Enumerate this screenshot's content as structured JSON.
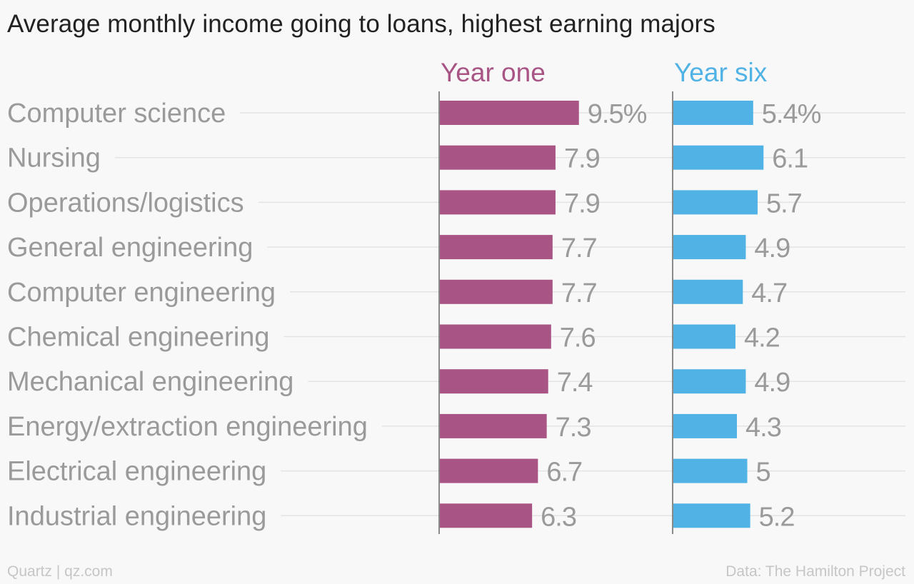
{
  "title": "Average monthly income going to loans, highest earning majors",
  "footer": {
    "source_left": "Quartz | qz.com",
    "source_right": "Data: The Hamilton Project"
  },
  "colors": {
    "year_one": "#a85585",
    "year_six": "#51b2e5",
    "label": "#9a9a9a",
    "value": "#9a9a9a",
    "grid": "#e3e3e3",
    "axis": "#666666"
  },
  "chart_data": {
    "type": "bar",
    "orientation": "horizontal",
    "title": "Average monthly income going to loans, highest earning majors",
    "categories": [
      "Computer science",
      "Nursing",
      "Operations/logistics",
      "General engineering",
      "Computer engineering",
      "Chemical engineering",
      "Mechanical engineering",
      "Energy/extraction engineering",
      "Electrical engineering",
      "Industrial engineering"
    ],
    "series": [
      {
        "name": "Year one",
        "values": [
          9.5,
          7.9,
          7.9,
          7.7,
          7.7,
          7.6,
          7.4,
          7.3,
          6.7,
          6.3
        ],
        "labels": [
          "9.5%",
          "7.9",
          "7.9",
          "7.7",
          "7.7",
          "7.6",
          "7.4",
          "7.3",
          "6.7",
          "6.3"
        ]
      },
      {
        "name": "Year six",
        "values": [
          5.4,
          6.1,
          5.7,
          4.9,
          4.7,
          4.2,
          4.9,
          4.3,
          5.0,
          5.2
        ],
        "labels": [
          "5.4%",
          "6.1",
          "5.7",
          "4.9",
          "4.7",
          "4.2",
          "4.9",
          "4.3",
          "5",
          "5.2"
        ]
      }
    ],
    "unit": "%",
    "grid": true
  }
}
